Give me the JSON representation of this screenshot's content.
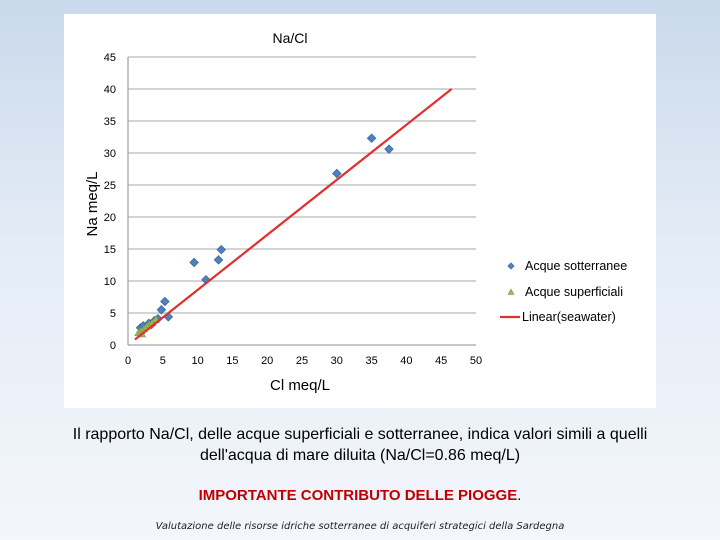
{
  "caption": {
    "main": "Il rapporto Na/Cl, delle acque superficiali e sotterranee, indica valori simili a quelli dell'acqua di mare diluita (Na/Cl=0.86 meq/L)",
    "highlight": "IMPORTANTE CONTRIBUTO DELLE PIOGGE",
    "highlight_suffix": ".",
    "footer": "Valutazione delle risorse idriche sotterranee di acquiferi strategici della Sardegna"
  },
  "chart_data": {
    "type": "scatter",
    "title": "Na/Cl",
    "xlabel": "Cl meq/L",
    "ylabel": "Na meq/L",
    "xlim": [
      0,
      50
    ],
    "ylim": [
      0,
      45
    ],
    "xticks": [
      0,
      5,
      10,
      15,
      20,
      25,
      30,
      35,
      40,
      45,
      50
    ],
    "yticks": [
      0,
      5,
      10,
      15,
      20,
      25,
      30,
      35,
      40,
      45
    ],
    "grid": true,
    "legend_position": "right",
    "series": [
      {
        "name": "Acque sotterranee",
        "marker": "diamond",
        "color": "#4f81bd",
        "points": [
          [
            1.8,
            2.7
          ],
          [
            2.2,
            3.0
          ],
          [
            2.6,
            2.8
          ],
          [
            3.0,
            3.4
          ],
          [
            3.4,
            3.2
          ],
          [
            3.8,
            3.8
          ],
          [
            4.3,
            4.1
          ],
          [
            4.8,
            5.5
          ],
          [
            5.3,
            6.8
          ],
          [
            5.8,
            4.4
          ],
          [
            9.5,
            12.9
          ],
          [
            11.2,
            10.2
          ],
          [
            13.0,
            13.3
          ],
          [
            13.4,
            14.9
          ],
          [
            30.0,
            26.8
          ],
          [
            35.0,
            32.3
          ],
          [
            37.5,
            30.6
          ]
        ]
      },
      {
        "name": "Acque superficiali",
        "marker": "triangle",
        "color": "#9bbb59",
        "points": [
          [
            1.5,
            1.9
          ],
          [
            1.9,
            2.2
          ],
          [
            2.3,
            2.5
          ],
          [
            2.7,
            2.9
          ],
          [
            3.1,
            3.2
          ],
          [
            3.5,
            3.5
          ],
          [
            4.0,
            4.0
          ],
          [
            2.0,
            1.7
          ]
        ]
      },
      {
        "name": "Linear(seawater)",
        "type": "line",
        "color": "#e03030",
        "points": [
          [
            1.0,
            0.86
          ],
          [
            46.5,
            40.0
          ]
        ]
      }
    ]
  }
}
